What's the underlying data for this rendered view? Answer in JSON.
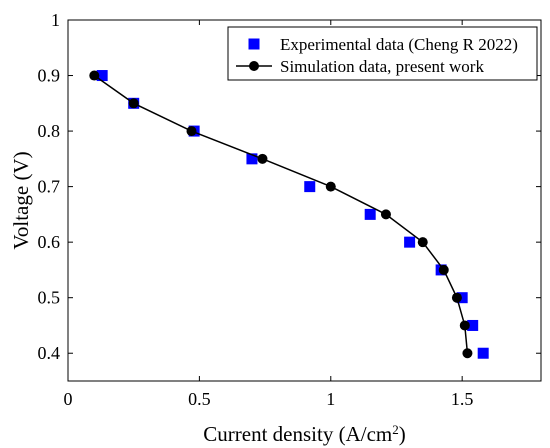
{
  "chart_data": {
    "type": "scatter",
    "xlabel": "Current density (A/cm",
    "xlabel_sup": "2",
    "xlabel_tail": ")",
    "ylabel": "Voltage (V)",
    "xlim": [
      0,
      1.8
    ],
    "ylim": [
      0.35,
      1.0
    ],
    "x_ticks": [
      0,
      0.5,
      1,
      1.5
    ],
    "x_tick_labels": [
      "0",
      "0.5",
      "1",
      "1.5"
    ],
    "y_ticks": [
      0.4,
      0.5,
      0.6,
      0.7,
      0.8,
      0.9,
      1.0
    ],
    "y_tick_labels": [
      "0.4",
      "0.5",
      "0.6",
      "0.7",
      "0.8",
      "0.9",
      "1"
    ],
    "grid": false,
    "legend_position": "top-right",
    "series": [
      {
        "name": "Experimental data (Cheng R 2022)",
        "marker": "square",
        "color": "#0000ff",
        "line": false,
        "x": [
          0.13,
          0.25,
          0.48,
          0.7,
          0.92,
          1.15,
          1.3,
          1.42,
          1.5,
          1.54,
          1.58
        ],
        "y": [
          0.9,
          0.85,
          0.8,
          0.75,
          0.7,
          0.65,
          0.6,
          0.55,
          0.5,
          0.45,
          0.4
        ]
      },
      {
        "name": "Simulation data, present work",
        "marker": "circle",
        "color": "#000000",
        "line": true,
        "x": [
          0.1,
          0.25,
          0.47,
          0.74,
          1.0,
          1.21,
          1.35,
          1.43,
          1.48,
          1.51,
          1.52
        ],
        "y": [
          0.9,
          0.85,
          0.8,
          0.75,
          0.7,
          0.65,
          0.6,
          0.55,
          0.5,
          0.45,
          0.4
        ]
      }
    ]
  }
}
